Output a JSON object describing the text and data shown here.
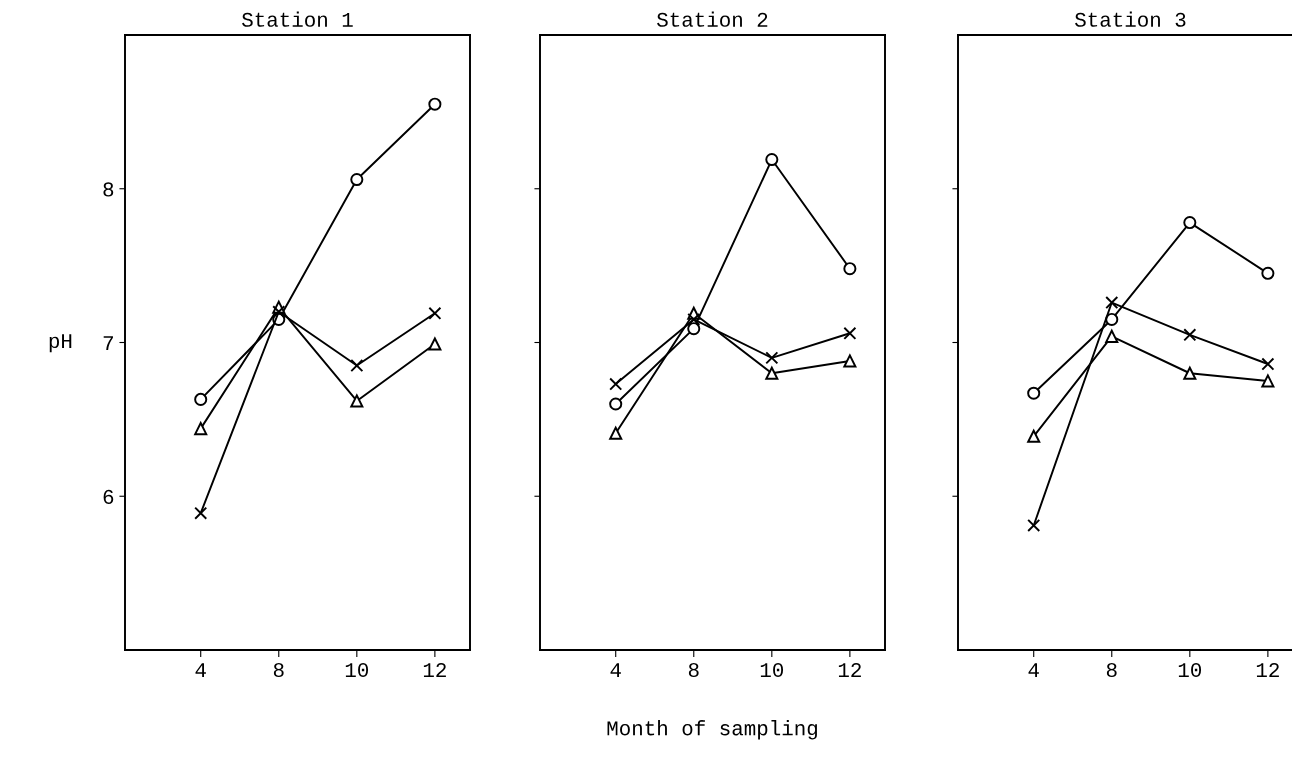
{
  "chart_data": [
    {
      "type": "line",
      "title": "Station 1",
      "ylabel": "pH",
      "categories": [
        "4",
        "8",
        "10",
        "12"
      ],
      "ylim": [
        5,
        9
      ],
      "yticks": [
        6,
        7,
        8
      ],
      "line_style": "solid",
      "series": [
        {
          "color": "#000000",
          "marker": "circle",
          "values": [
            6.63,
            7.15,
            8.06,
            8.55
          ]
        },
        {
          "color": "#000000",
          "marker": "triangle",
          "values": [
            6.44,
            7.23,
            6.62,
            6.99
          ]
        },
        {
          "color": "#000000",
          "marker": "cross",
          "values": [
            5.89,
            7.2,
            6.85,
            7.19
          ]
        }
      ]
    },
    {
      "type": "line",
      "title": "Station 2",
      "xlabel": "Month of sampling",
      "categories": [
        "4",
        "8",
        "10",
        "12"
      ],
      "ylim": [
        5,
        9
      ],
      "yticks": [
        6,
        7,
        8
      ],
      "tick_labels": "x",
      "line_style": "solid",
      "series": [
        {
          "color": "#000000",
          "marker": "circle",
          "values": [
            6.6,
            7.09,
            8.19,
            7.48
          ]
        },
        {
          "color": "#000000",
          "marker": "triangle",
          "values": [
            6.41,
            7.19,
            6.8,
            6.88
          ]
        },
        {
          "color": "#000000",
          "marker": "cross",
          "values": [
            6.73,
            7.15,
            6.9,
            7.06
          ]
        }
      ]
    },
    {
      "type": "line",
      "title": "Station 3",
      "categories": [
        "4",
        "8",
        "10",
        "12"
      ],
      "ylim": [
        5,
        9
      ],
      "yticks": [
        6,
        7,
        8
      ],
      "tick_labels": "x",
      "line_style": "solid",
      "series": [
        {
          "color": "#000000",
          "marker": "circle",
          "values": [
            6.67,
            7.15,
            7.78,
            7.45
          ]
        },
        {
          "color": "#000000",
          "marker": "triangle",
          "values": [
            6.39,
            7.04,
            6.8,
            6.75
          ]
        },
        {
          "color": "#000000",
          "marker": "cross",
          "values": [
            5.81,
            7.26,
            7.05,
            6.86
          ]
        }
      ]
    }
  ]
}
